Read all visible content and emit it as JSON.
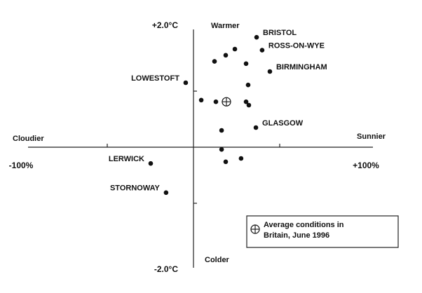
{
  "chart_data": {
    "type": "scatter",
    "x_label_left": "Cloudier",
    "x_label_right": "Sunnier",
    "y_label_top": "Warmer",
    "y_label_bottom": "Colder",
    "xlim": [
      -100,
      100
    ],
    "ylim": [
      -2,
      2
    ],
    "xticks": [
      {
        "value": -100,
        "label": "-100%"
      },
      {
        "value": 100,
        "label": "+100%"
      }
    ],
    "yticks": [
      {
        "value": 2,
        "label": "+2.0°C"
      },
      {
        "value": -2,
        "label": "-2.0°C"
      }
    ],
    "minor_xticks": [
      -50,
      50
    ],
    "minor_yticks": [
      -1,
      1
    ],
    "color": "#111111",
    "x": [
      36.6,
      39.8,
      44.3,
      -4.5,
      36.2,
      -24.8,
      -15.9,
      24,
      18.7,
      12.2,
      30.5,
      31.7,
      4.5,
      13,
      30.5,
      32.1,
      16.3,
      16.3,
      27.6,
      18.7
    ],
    "values": [
      1.96,
      1.73,
      1.35,
      1.15,
      0.35,
      -0.29,
      -0.81,
      1.75,
      1.64,
      1.53,
      1.49,
      1.11,
      0.84,
      0.81,
      0.81,
      0.75,
      0.3,
      -0.04,
      -0.2,
      -0.26
    ],
    "labels": [
      "BRISTOL",
      "ROSS-ON-WYE",
      "BIRMINGHAM",
      "LOWESTOFT",
      "GLASGOW",
      "LERWICK",
      "STORNOWAY",
      null,
      null,
      null,
      null,
      null,
      null,
      null,
      null,
      null,
      null,
      null,
      null,
      null
    ],
    "average": {
      "x": 19.1,
      "y": 0.81
    },
    "legend_label": [
      "Average conditions in",
      "Britain, June 1996"
    ]
  }
}
